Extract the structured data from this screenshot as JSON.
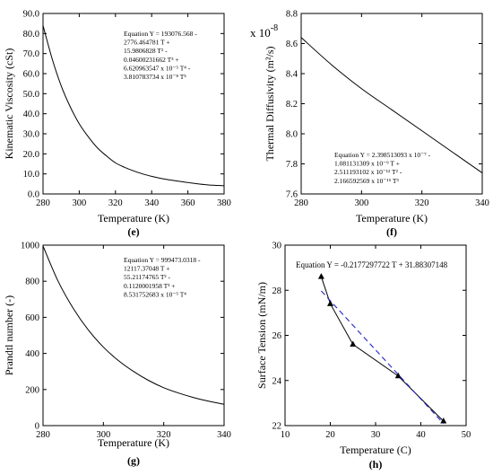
{
  "chart_data": [
    {
      "id": "e",
      "type": "line",
      "panel_label": "(e)",
      "xlabel": "Temperature (K)",
      "ylabel": "Kinematic Viscosity (cSt)",
      "xlim": [
        280,
        380
      ],
      "ylim": [
        0,
        90
      ],
      "xticks": [
        280,
        300,
        320,
        340,
        360,
        380
      ],
      "xtick_labels": [
        "280",
        "300",
        "320",
        "340",
        "360",
        "380"
      ],
      "yticks": [
        0,
        10,
        20,
        30,
        40,
        50,
        60,
        70,
        80,
        90
      ],
      "ytick_labels": [
        "0.0",
        "10.0",
        "20.0",
        "30.0",
        "40.0",
        "50.0",
        "60.0",
        "70.0",
        "80.0",
        "90.0"
      ],
      "grid": false,
      "annotation": [
        "Equation Y = 193076.568 -",
        "2776.464781  T +",
        "15.9806828  T² -",
        "0.04600231662  T³ +",
        "6.620963547 x 10⁻⁵  T⁴ -",
        "3.810783734 x 10⁻⁸  T⁵"
      ],
      "annotation_position": "top-right",
      "series": [
        {
          "x": [
            280,
            285,
            290,
            295,
            300,
            305,
            310,
            315,
            320,
            325,
            330,
            335,
            340,
            345,
            350,
            355,
            360,
            365,
            370,
            375,
            380
          ],
          "y": [
            84,
            67.5,
            54,
            43.5,
            35,
            28.5,
            23,
            19,
            15.5,
            13.3,
            11.5,
            10,
            8.8,
            7.8,
            7,
            6.3,
            5.7,
            5.1,
            4.6,
            4.3,
            4.1
          ],
          "markers": false,
          "style": "solid"
        }
      ]
    },
    {
      "id": "f",
      "type": "line",
      "panel_label": "(f)",
      "xlabel": "Temperature (K)",
      "ylabel": "Thermal Diffusivity (m²/s)",
      "scale_label": "x 10",
      "scale_exponent": "-8",
      "xlim": [
        280,
        340
      ],
      "ylim": [
        7.6,
        8.8
      ],
      "xticks": [
        280,
        300,
        320,
        340
      ],
      "xtick_labels": [
        "280",
        "300",
        "320",
        "340"
      ],
      "yticks": [
        7.6,
        7.8,
        8.0,
        8.2,
        8.4,
        8.6,
        8.8
      ],
      "ytick_labels": [
        "7.6",
        "7.8",
        "8.0",
        "8.2",
        "8.4",
        "8.6",
        "8.8"
      ],
      "grid": false,
      "annotation": [
        "Equation Y = 2.398513093 x 10⁻⁷ -",
        "1.081131309 x 10⁻⁹  T +",
        "2.511193102 x 10⁻¹²  T² -",
        "2.166592569 x 10⁻¹⁵  T³"
      ],
      "annotation_position": "bottom-left",
      "series": [
        {
          "x": [
            280,
            290,
            300,
            310,
            320,
            330,
            340
          ],
          "y": [
            8.64,
            8.46,
            8.3,
            8.16,
            8.02,
            7.88,
            7.74
          ],
          "markers": false,
          "style": "solid"
        }
      ]
    },
    {
      "id": "g",
      "type": "line",
      "panel_label": "(g)",
      "xlabel": "Temperature (K)",
      "ylabel": "Prandtl number (-)",
      "xlim": [
        280,
        340
      ],
      "ylim": [
        0,
        1000
      ],
      "xticks": [
        280,
        300,
        320,
        340
      ],
      "xtick_labels": [
        "280",
        "300",
        "320",
        "340"
      ],
      "yticks": [
        0,
        200,
        400,
        600,
        800,
        1000
      ],
      "ytick_labels": [
        "0",
        "200",
        "400",
        "600",
        "800",
        "1000"
      ],
      "grid": false,
      "annotation": [
        "Equation Y = 999473.0318 -",
        "12117.37048  T +",
        "55.21174765  T² -",
        "0.1120001958  T³ +",
        "8.531752683 x 10⁻⁵ T⁴"
      ],
      "annotation_position": "top-right",
      "series": [
        {
          "x": [
            280,
            285,
            290,
            295,
            300,
            305,
            310,
            315,
            320,
            325,
            330,
            335,
            340
          ],
          "y": [
            995,
            800,
            650,
            530,
            435,
            360,
            300,
            250,
            210,
            180,
            155,
            135,
            118
          ],
          "markers": false,
          "style": "solid"
        }
      ]
    },
    {
      "id": "h",
      "type": "line",
      "panel_label": "(h)",
      "xlabel": "Temperature (C)",
      "ylabel": "Surface Tension (mN/m)",
      "xlim": [
        10,
        50
      ],
      "ylim": [
        22,
        30
      ],
      "xticks": [
        10,
        20,
        30,
        40,
        50
      ],
      "xtick_labels": [
        "10",
        "20",
        "30",
        "40",
        "50"
      ],
      "yticks": [
        22,
        24,
        26,
        28,
        30
      ],
      "ytick_labels": [
        "22",
        "24",
        "26",
        "28",
        "30"
      ],
      "grid": false,
      "annotation": [
        "Equation Y = -0.2177297722  T + 31.88307148"
      ],
      "annotation_position": "top",
      "series": [
        {
          "x": [
            18,
            20,
            25,
            35,
            45
          ],
          "y": [
            28.6,
            27.4,
            25.6,
            24.2,
            22.2
          ],
          "markers": true,
          "style": "solid",
          "color": "#000000"
        },
        {
          "x": [
            18,
            45
          ],
          "y": [
            27.97,
            22.09
          ],
          "markers": false,
          "style": "dashed",
          "color": "#2323c8"
        }
      ]
    }
  ]
}
